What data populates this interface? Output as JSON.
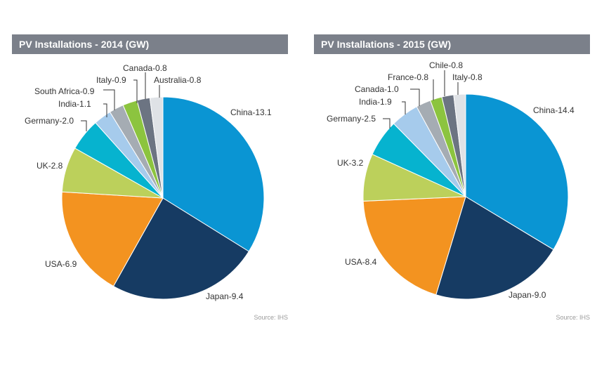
{
  "source_label": "Source: IHS",
  "chart_data": [
    {
      "type": "pie",
      "title": "PV Installations - 2014 (GW)",
      "slices": [
        {
          "label": "China-13.1",
          "value": 13.1,
          "color": "#0a95d3"
        },
        {
          "label": "Japan-9.4",
          "value": 9.4,
          "color": "#163b63"
        },
        {
          "label": "USA-6.9",
          "value": 6.9,
          "color": "#f39320"
        },
        {
          "label": "UK-2.8",
          "value": 2.8,
          "color": "#bcd05b"
        },
        {
          "label": "Germany-2.0",
          "value": 2.0,
          "color": "#06b3cf"
        },
        {
          "label": "India-1.1",
          "value": 1.1,
          "color": "#a6cbec"
        },
        {
          "label": "South Africa-0.9",
          "value": 0.9,
          "color": "#a5acb3"
        },
        {
          "label": "Italy-0.9",
          "value": 0.9,
          "color": "#8cc43f"
        },
        {
          "label": "Canada-0.8",
          "value": 0.8,
          "color": "#6c7482"
        },
        {
          "label": "Australia-0.8",
          "value": 0.8,
          "color": "#dfe2e6"
        }
      ]
    },
    {
      "type": "pie",
      "title": "PV Installations - 2015 (GW)",
      "slices": [
        {
          "label": "China-14.4",
          "value": 14.4,
          "color": "#0a95d3"
        },
        {
          "label": "Japan-9.0",
          "value": 9.0,
          "color": "#163b63"
        },
        {
          "label": "USA-8.4",
          "value": 8.4,
          "color": "#f39320"
        },
        {
          "label": "UK-3.2",
          "value": 3.2,
          "color": "#bcd05b"
        },
        {
          "label": "Germany-2.5",
          "value": 2.5,
          "color": "#06b3cf"
        },
        {
          "label": "India-1.9",
          "value": 1.9,
          "color": "#a6cbec"
        },
        {
          "label": "Canada-1.0",
          "value": 1.0,
          "color": "#a5acb3"
        },
        {
          "label": "France-0.8",
          "value": 0.8,
          "color": "#8cc43f"
        },
        {
          "label": "Chile-0.8",
          "value": 0.8,
          "color": "#6c7482"
        },
        {
          "label": "Italy-0.8",
          "value": 0.8,
          "color": "#dfe2e6"
        }
      ]
    }
  ]
}
